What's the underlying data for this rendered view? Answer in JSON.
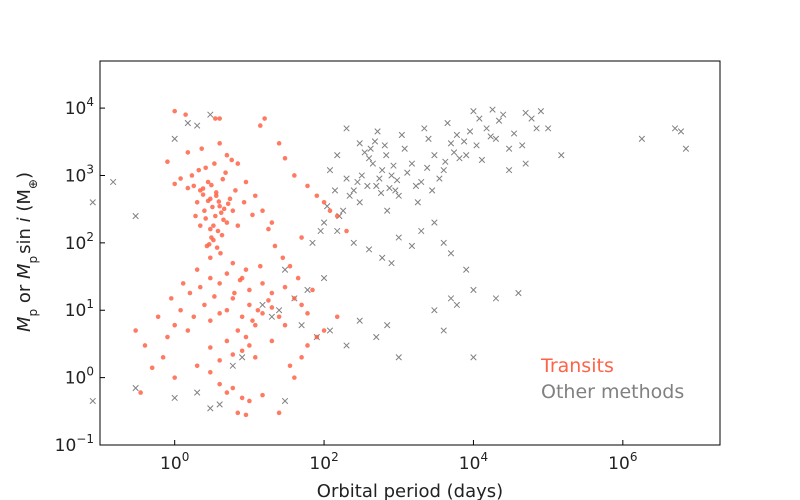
{
  "chart_data": {
    "type": "scatter",
    "title": "",
    "xlabel": "Orbital period (days)",
    "ylabel": {
      "prefix": "M",
      "sub1": "p",
      "mid": " or ",
      "m2": "M",
      "sub2": "p",
      "sin": "sin ",
      "i": "i",
      "unit_open": " (M",
      "unit_sub": "⊕",
      "unit_close": ")"
    },
    "x_scale": "log",
    "y_scale": "log",
    "xlim": [
      0.1,
      20000000
    ],
    "ylim": [
      0.1,
      50000
    ],
    "x_ticks": [
      {
        "value": 1,
        "base": "10",
        "exp": "0"
      },
      {
        "value": 100,
        "base": "10",
        "exp": "2"
      },
      {
        "value": 10000,
        "base": "10",
        "exp": "4"
      },
      {
        "value": 1000000,
        "base": "10",
        "exp": "6"
      }
    ],
    "y_ticks": [
      {
        "value": 0.1,
        "base": "10",
        "exp": "−1"
      },
      {
        "value": 1,
        "base": "10",
        "exp": "0"
      },
      {
        "value": 10,
        "base": "10",
        "exp": "1"
      },
      {
        "value": 100,
        "base": "10",
        "exp": "2"
      },
      {
        "value": 1000,
        "base": "10",
        "exp": "3"
      },
      {
        "value": 10000,
        "base": "10",
        "exp": "4"
      }
    ],
    "grid": false,
    "legend_position": "bottom-right",
    "series": [
      {
        "name": "Transits",
        "marker": "circle",
        "color": "#ff6347",
        "points": [
          [
            3.0,
            450
          ],
          [
            2.5,
            300
          ],
          [
            3.5,
            250
          ],
          [
            4.0,
            350
          ],
          [
            2.2,
            600
          ],
          [
            3.3,
            180
          ],
          [
            4.5,
            220
          ],
          [
            2.8,
            800
          ],
          [
            3.1,
            120
          ],
          [
            3.8,
            150
          ],
          [
            2.0,
            400
          ],
          [
            1.8,
            700
          ],
          [
            3.6,
            500
          ],
          [
            4.2,
            280
          ],
          [
            2.6,
            230
          ],
          [
            3.2,
            340
          ],
          [
            5.0,
            200
          ],
          [
            2.4,
            520
          ],
          [
            3.9,
            410
          ],
          [
            1.5,
            650
          ],
          [
            1.2,
            900
          ],
          [
            1.0,
            750
          ],
          [
            2.1,
            1200
          ],
          [
            3.4,
            1500
          ],
          [
            4.8,
            1100
          ],
          [
            6.0,
            300
          ],
          [
            7.0,
            180
          ],
          [
            5.5,
            450
          ],
          [
            2.9,
            95
          ],
          [
            3.7,
            85
          ],
          [
            4.1,
            70
          ],
          [
            3.0,
            60
          ],
          [
            2.3,
            2500
          ],
          [
            4.0,
            3000
          ],
          [
            5.0,
            2000
          ],
          [
            7.0,
            1500
          ],
          [
            9.0,
            800
          ],
          [
            12.0,
            500
          ],
          [
            15.0,
            300
          ],
          [
            20.0,
            200
          ],
          [
            0.8,
            1600
          ],
          [
            1.5,
            2200
          ],
          [
            2.0,
            40
          ],
          [
            3.0,
            30
          ],
          [
            4.0,
            25
          ],
          [
            5.0,
            35
          ],
          [
            6.0,
            50
          ],
          [
            8.0,
            30
          ],
          [
            1.4,
            8000
          ],
          [
            3.5,
            7000
          ],
          [
            4.0,
            7000
          ],
          [
            1.0,
            9000
          ],
          [
            16.0,
            7000
          ],
          [
            14.0,
            5500
          ],
          [
            25.0,
            3000
          ],
          [
            30.0,
            1800
          ],
          [
            40.0,
            1000
          ],
          [
            60.0,
            700
          ],
          [
            80.0,
            500
          ],
          [
            100.0,
            400
          ],
          [
            120.0,
            300
          ],
          [
            150.0,
            250
          ],
          [
            200.0,
            150
          ],
          [
            50.0,
            120
          ],
          [
            5.0,
            10
          ],
          [
            8.0,
            8
          ],
          [
            10.0,
            12
          ],
          [
            12.0,
            6
          ],
          [
            15.0,
            9
          ],
          [
            20.0,
            11
          ],
          [
            7.0,
            5
          ],
          [
            6.0,
            15
          ],
          [
            3.0,
            7
          ],
          [
            4.0,
            9
          ],
          [
            9.0,
            4
          ],
          [
            11.0,
            7
          ],
          [
            13.0,
            10
          ],
          [
            18.0,
            14
          ],
          [
            25.0,
            8
          ],
          [
            30.0,
            6
          ],
          [
            2.5,
            12
          ],
          [
            1.8,
            8
          ],
          [
            1.5,
            5
          ],
          [
            1.2,
            10
          ],
          [
            1.0,
            6
          ],
          [
            0.9,
            15
          ],
          [
            0.8,
            4
          ],
          [
            0.6,
            8
          ],
          [
            10.0,
            20
          ],
          [
            15.0,
            25
          ],
          [
            20.0,
            18
          ],
          [
            30.0,
            22
          ],
          [
            40.0,
            15
          ],
          [
            50.0,
            12
          ],
          [
            60.0,
            9
          ],
          [
            70.0,
            20
          ],
          [
            8.0,
            2.5
          ],
          [
            10.0,
            3.0
          ],
          [
            12.0,
            2.0
          ],
          [
            5.0,
            3.5
          ],
          [
            6.0,
            2.2
          ],
          [
            4.0,
            1.8
          ],
          [
            3.0,
            2.8
          ],
          [
            20.0,
            3.5
          ],
          [
            2.0,
            1.5
          ],
          [
            3.0,
            1.2
          ],
          [
            4.0,
            0.8
          ],
          [
            5.0,
            0.6
          ],
          [
            6.0,
            0.7
          ],
          [
            8.0,
            0.5
          ],
          [
            10.0,
            0.45
          ],
          [
            1.0,
            1.0
          ],
          [
            0.5,
            1.4
          ],
          [
            0.7,
            2.0
          ],
          [
            0.4,
            3.0
          ],
          [
            0.3,
            5.0
          ],
          [
            0.35,
            0.6
          ],
          [
            7.0,
            0.3
          ],
          [
            9.0,
            0.28
          ],
          [
            15.0,
            0.55
          ],
          [
            25.0,
            0.3
          ],
          [
            40.0,
            1.0
          ],
          [
            50.0,
            2.0
          ],
          [
            100.0,
            5.0
          ],
          [
            150.0,
            8.0
          ],
          [
            80.0,
            4.0
          ],
          [
            60.0,
            3.0
          ],
          [
            35.0,
            1.5
          ],
          [
            2.7,
            90
          ],
          [
            3.3,
            110
          ],
          [
            4.3,
            130
          ],
          [
            3.0,
            160
          ],
          [
            2.2,
            180
          ],
          [
            1.9,
            250
          ],
          [
            4.6,
            320
          ],
          [
            5.2,
            380
          ],
          [
            2.8,
            420
          ],
          [
            3.6,
            560
          ],
          [
            2.4,
            640
          ],
          [
            3.1,
            720
          ],
          [
            4.4,
            880
          ],
          [
            1.7,
            1000
          ],
          [
            2.6,
            1300
          ],
          [
            5.8,
            1700
          ],
          [
            6.5,
            600
          ],
          [
            8.5,
            400
          ],
          [
            11.0,
            260
          ],
          [
            18.0,
            160
          ],
          [
            22.0,
            90
          ],
          [
            28.0,
            60
          ],
          [
            35.0,
            45
          ],
          [
            45.0,
            30
          ],
          [
            14.0,
            45
          ],
          [
            9.0,
            40
          ],
          [
            7.5,
            28
          ],
          [
            6.3,
            18
          ],
          [
            3.4,
            16
          ],
          [
            2.2,
            22
          ],
          [
            1.6,
            18
          ],
          [
            1.3,
            25
          ]
        ]
      },
      {
        "name": "Other methods",
        "marker": "x",
        "color": "#808080",
        "points": [
          [
            500,
            700
          ],
          [
            800,
            1000
          ],
          [
            1000,
            500
          ],
          [
            1500,
            1500
          ],
          [
            2000,
            800
          ],
          [
            3000,
            2000
          ],
          [
            4000,
            1200
          ],
          [
            5000,
            3000
          ],
          [
            300,
            400
          ],
          [
            600,
            1200
          ],
          [
            1200,
            2500
          ],
          [
            2500,
            3500
          ],
          [
            700,
            300
          ],
          [
            900,
            600
          ],
          [
            1800,
            400
          ],
          [
            400,
            1800
          ],
          [
            200,
            900
          ],
          [
            350,
            2200
          ],
          [
            650,
            2800
          ],
          [
            1100,
            4000
          ],
          [
            2200,
            5000
          ],
          [
            4500,
            6000
          ],
          [
            6000,
            4000
          ],
          [
            8000,
            2000
          ],
          [
            10000,
            9000
          ],
          [
            12000,
            7000
          ],
          [
            15000,
            5000
          ],
          [
            20000,
            3500
          ],
          [
            25000,
            8000
          ],
          [
            30000,
            2500
          ],
          [
            50000,
            8500
          ],
          [
            70000,
            5000
          ],
          [
            100,
            200
          ],
          [
            150,
            150
          ],
          [
            250,
            100
          ],
          [
            400,
            80
          ],
          [
            600,
            60
          ],
          [
            800,
            50
          ],
          [
            1000,
            120
          ],
          [
            1500,
            90
          ],
          [
            2000,
            150
          ],
          [
            3000,
            200
          ],
          [
            4000,
            100
          ],
          [
            5000,
            70
          ],
          [
            8000,
            40
          ],
          [
            10000,
            20
          ],
          [
            20000,
            15
          ],
          [
            40000,
            18
          ],
          [
            100,
            30
          ],
          [
            60,
            20
          ],
          [
            40,
            15
          ],
          [
            30,
            40
          ],
          [
            25,
            10
          ],
          [
            20,
            8
          ],
          [
            15,
            12
          ],
          [
            50,
            6
          ],
          [
            80,
            4
          ],
          [
            120,
            5
          ],
          [
            200,
            3
          ],
          [
            300,
            7
          ],
          [
            500,
            4
          ],
          [
            700,
            6
          ],
          [
            1000,
            2
          ],
          [
            10000,
            2
          ],
          [
            5000,
            15
          ],
          [
            4000,
            5
          ],
          [
            3000,
            10
          ],
          [
            6000,
            12
          ],
          [
            0.08,
            400
          ],
          [
            0.15,
            800
          ],
          [
            0.3,
            250
          ],
          [
            0.08,
            0.45
          ],
          [
            0.3,
            0.7
          ],
          [
            3.0,
            0.35
          ],
          [
            4.0,
            0.4
          ],
          [
            2.0,
            0.6
          ],
          [
            1.0,
            0.5
          ],
          [
            30.0,
            0.45
          ],
          [
            6.0,
            1.5
          ],
          [
            8.0,
            2.0
          ],
          [
            1800000,
            3500
          ],
          [
            5000000,
            5000
          ],
          [
            6000000,
            4500
          ],
          [
            7000000,
            2500
          ],
          [
            100000,
            5000
          ],
          [
            150000,
            2000
          ],
          [
            50000,
            1500
          ],
          [
            30000,
            1200
          ],
          [
            2.0,
            5500
          ],
          [
            1.5,
            6000
          ],
          [
            1.0,
            3500
          ],
          [
            3.0,
            8000
          ],
          [
            200,
            5000
          ],
          [
            300,
            3000
          ],
          [
            150,
            2000
          ],
          [
            120,
            1200
          ],
          [
            450,
            1500
          ],
          [
            550,
            900
          ],
          [
            750,
            650
          ],
          [
            850,
            1400
          ],
          [
            950,
            850
          ],
          [
            1300,
            1100
          ],
          [
            1700,
            700
          ],
          [
            2400,
            1300
          ],
          [
            2800,
            600
          ],
          [
            3500,
            900
          ],
          [
            4200,
            1600
          ],
          [
            5500,
            2200
          ],
          [
            6500,
            1800
          ],
          [
            7500,
            3200
          ],
          [
            9000,
            4500
          ],
          [
            11000,
            2800
          ],
          [
            13000,
            1700
          ],
          [
            17000,
            3800
          ],
          [
            22000,
            6500
          ],
          [
            35000,
            4200
          ],
          [
            45000,
            2800
          ],
          [
            60000,
            7000
          ],
          [
            80000,
            9000
          ],
          [
            18000,
            9500
          ],
          [
            250,
            600
          ],
          [
            320,
            1000
          ],
          [
            380,
            700
          ],
          [
            420,
            2500
          ],
          [
            480,
            3200
          ],
          [
            520,
            4500
          ],
          [
            580,
            550
          ],
          [
            680,
            2000
          ],
          [
            180,
            300
          ],
          [
            220,
            500
          ],
          [
            280,
            800
          ],
          [
            160,
            250
          ],
          [
            140,
            600
          ],
          [
            110,
            350
          ],
          [
            90,
            150
          ],
          [
            70,
            100
          ]
        ]
      }
    ]
  }
}
